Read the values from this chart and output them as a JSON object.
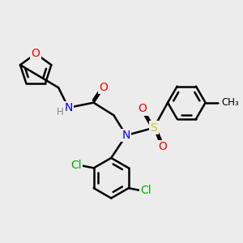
{
  "bg_color": "#ececec",
  "bond_color": "#000000",
  "bond_width": 1.8,
  "atom_colors": {
    "O": "#ff0000",
    "N": "#0000ff",
    "S": "#cccc00",
    "Cl": "#00aa00",
    "H": "#888888",
    "C": "#000000"
  },
  "font_size": 10,
  "font_size_small": 8.5
}
